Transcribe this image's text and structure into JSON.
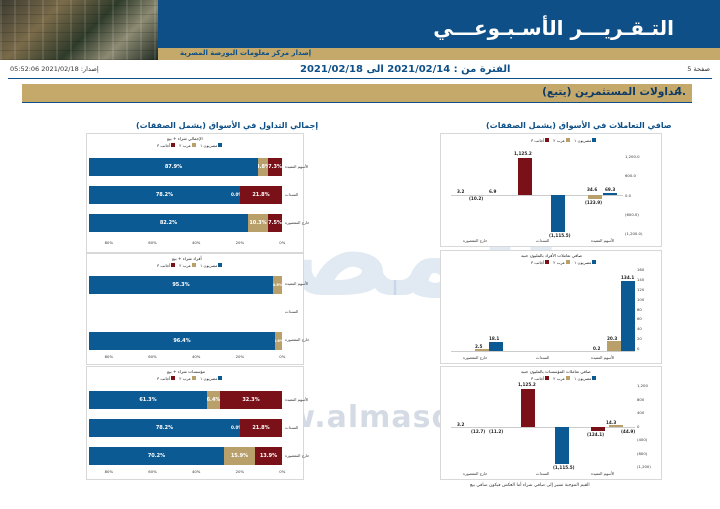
{
  "header": {
    "title": "التـقـريـــر الأسـبـوعـــي",
    "subtitle": "إصدار مركز معلومات البورصة المصرية",
    "issued": "إصدار: 2021/02/18 05:52:06",
    "period": "الفترة من : 2021/02/14 الى 2021/02/18",
    "page": "صفحة 5"
  },
  "section": {
    "number": "4.",
    "title": "تداولات المستثمرين (يتبع)"
  },
  "colors": {
    "blue": "#0c5a93",
    "tan": "#b9a06a",
    "maroon": "#7b1118",
    "navy": "#0d4f86",
    "gold": "#c5a96b"
  },
  "left_panel": {
    "title": "إجمالي التداول في الأسواق (يشمل الصفقات)",
    "legend": [
      "مصريون ١",
      "عرب ٢",
      "أجانب ٣"
    ],
    "axis": [
      "80%",
      "60%",
      "40%",
      "20%",
      "0%"
    ],
    "chart1": {
      "title": "الإجمالي شراء + بيع",
      "rows": [
        {
          "label": "الأسهم المقيدة",
          "blue": "87.9%",
          "tan": "4.8%",
          "maroon": "7.3%"
        },
        {
          "label": "السندات",
          "blue": "78.2%",
          "tan": "0.0%",
          "maroon": "21.8%"
        },
        {
          "label": "خارج المقصورة",
          "blue": "82.2%",
          "tan": "10.3%",
          "maroon": "7.5%"
        }
      ]
    },
    "chart2": {
      "title": "أفراد شراء + بيع",
      "rows": [
        {
          "label": "الأسهم المقيدة",
          "blue": "95.3%",
          "tan": "",
          "maroon": "4.6%"
        },
        {
          "label": "السندات",
          "blue": "",
          "tan": "",
          "maroon": ""
        },
        {
          "label": "خارج المقصورة",
          "blue": "96.4%",
          "tan": "3.6%",
          "maroon": ""
        }
      ]
    },
    "chart3": {
      "title": "مؤسسات شراء + بيع",
      "rows": [
        {
          "label": "الأسهم المقيدة",
          "blue": "61.3%",
          "tan": "6.4%",
          "maroon": "32.3%"
        },
        {
          "label": "السندات",
          "blue": "78.2%",
          "tan": "0.0%",
          "maroon": "21.8%"
        },
        {
          "label": "خارج المقصورة",
          "blue": "70.2%",
          "tan": "15.9%",
          "maroon": "13.9%"
        }
      ]
    }
  },
  "right_panel": {
    "title": "صافي التعاملات في الأسواق (يشمل الصفقات)",
    "legend": [
      "مصريون ١",
      "عرب ٢",
      "أجانب ٣"
    ],
    "chart1": {
      "title": "صافي التعاملات بالمليون جنيه",
      "yticks": [
        "1,200.0",
        "600.0",
        "0.0",
        "(600.0)",
        "(1,200.0)"
      ],
      "groups": [
        "الأسهم المقيدة",
        "السندات",
        "خارج المقصورة"
      ],
      "labels": [
        "69.3",
        "34.6",
        "(123.9)",
        "(1,115.5)",
        "1,125.2",
        "(10.2)",
        "6.9",
        "3.2"
      ]
    },
    "chart2": {
      "title": "صافي تعاملات الأفراد بالمليون جنيه",
      "yticks": [
        "160",
        "140",
        "120",
        "100",
        "80",
        "60",
        "40",
        "20",
        "0"
      ],
      "groups": [
        "الأسهم المقيدة",
        "السندات",
        "خارج المقصورة"
      ],
      "labels": [
        "134.1",
        "20.3",
        "0.2",
        "18.1",
        "2.5"
      ]
    },
    "chart3": {
      "title": "صافي تعاملات المؤسسات بالمليون جنيه",
      "yticks": [
        "1,200",
        "800",
        "400",
        "0",
        "(400)",
        "(800)",
        "(1,200)"
      ],
      "groups": [
        "الأسهم المقيدة",
        "السندات",
        "خارج المقصورة"
      ],
      "labels": [
        "14.3",
        "(44.9)",
        "(124.1)",
        "(1,115.5)",
        "1,125.2",
        "(11.2)",
        "(12.7)",
        "3.2"
      ]
    },
    "footnote": "القيم الموجبة تشير إلى صافي شراء أما العكس فيكون صافي بيع"
  },
  "watermark": {
    "logo": "المصدر",
    "url": "www.almasdar.com"
  }
}
